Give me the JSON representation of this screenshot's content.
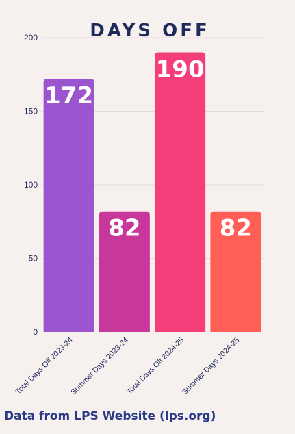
{
  "chart_data": {
    "type": "bar",
    "title": "DAYS OFF",
    "categories": [
      "Total Days Off 2023-24",
      "Summer Days 2023-24",
      "Total Days Off 2024-25",
      "Summer Days 2024-25"
    ],
    "values": [
      172,
      82,
      190,
      82
    ],
    "data_labels": [
      "172",
      "82",
      "190",
      "82"
    ],
    "bar_colors": [
      "#9b55cf",
      "#c8389a",
      "#f33e7a",
      "#ff5f56"
    ],
    "ylim": [
      0,
      200
    ],
    "yticks": [
      0,
      50,
      100,
      150,
      200
    ],
    "ytick_labels": [
      "0",
      "50",
      "100",
      "150",
      "200"
    ],
    "grid": true,
    "legend": "none"
  },
  "footer": {
    "source": "Data from LPS Website (lps.org)"
  },
  "colors": {
    "background": "#f6f0ef",
    "title": "#1f2a5c",
    "source_text": "#2a3a86"
  }
}
